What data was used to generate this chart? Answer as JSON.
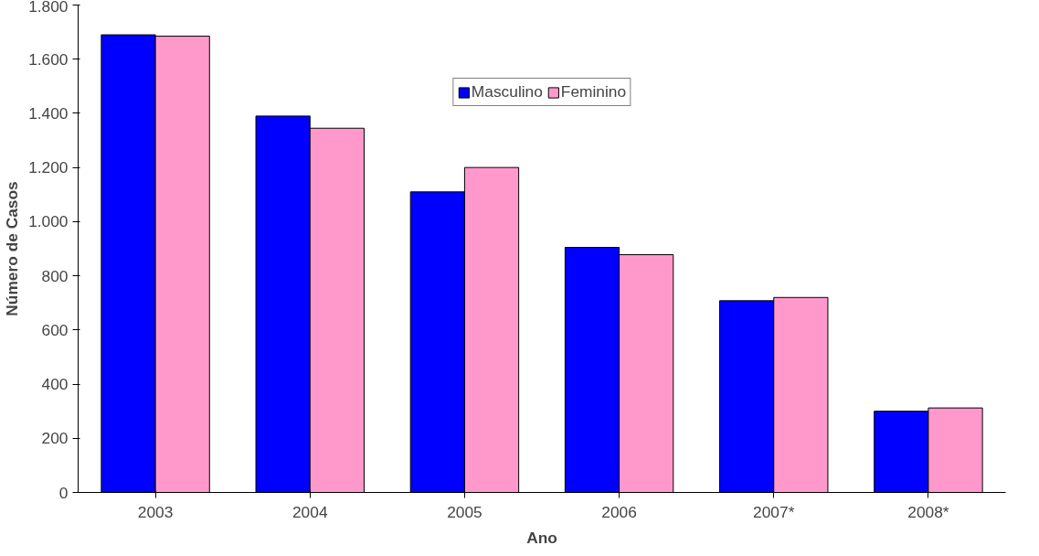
{
  "chart_data": {
    "type": "bar",
    "xlabel": "Ano",
    "ylabel": "Número de Casos",
    "categories": [
      "2003",
      "2004",
      "2005",
      "2006",
      "2007*",
      "2008*"
    ],
    "series": [
      {
        "name": "Masculino",
        "color": "#0000ff",
        "values": [
          1690,
          1390,
          1110,
          905,
          708,
          300
        ]
      },
      {
        "name": "Feminino",
        "color": "#ff99cc",
        "values": [
          1685,
          1345,
          1200,
          878,
          720,
          312
        ]
      }
    ],
    "ylim": [
      0,
      1800
    ],
    "yticks": [
      0,
      {
        "value": 200,
        "label": "200"
      },
      {
        "value": 400,
        "label": "400"
      },
      {
        "value": 600,
        "label": "600"
      },
      {
        "value": 800,
        "label": "800"
      },
      {
        "value": 1000,
        "label": "1.000"
      },
      {
        "value": 1200,
        "label": "1.200"
      },
      {
        "value": 1400,
        "label": "1.400"
      },
      {
        "value": 1600,
        "label": "1.600"
      },
      {
        "value": 1800,
        "label": "1.800"
      }
    ],
    "grid": false,
    "legend": "top"
  }
}
